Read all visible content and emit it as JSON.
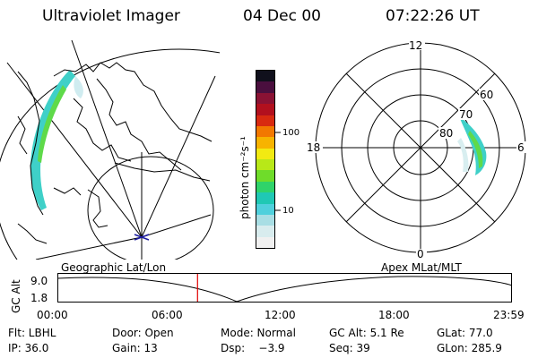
{
  "header": {
    "instrument": "Ultraviolet Imager",
    "date": "04 Dec 00",
    "time": "07:22:26 UT"
  },
  "colorbar": {
    "unit_label": "photon cm⁻²s⁻¹",
    "ticks": [
      "100",
      "10"
    ],
    "colors": [
      "#f0f0f0",
      "#d8ecee",
      "#a8dee4",
      "#4fd0dc",
      "#1fc8b4",
      "#2fd36a",
      "#6fdc2a",
      "#b8e818",
      "#f2ea12",
      "#f7b300",
      "#f27800",
      "#d82a10",
      "#b2101e",
      "#8a1234",
      "#4a0f3e",
      "#10101c"
    ]
  },
  "polar_plot": {
    "hour_labels": [
      "12",
      "18",
      "6",
      "0"
    ],
    "lat_labels": [
      "60",
      "70",
      "80"
    ]
  },
  "map_labels": {
    "left": "Geographic Lat/Lon",
    "right": "Apex  MLat/MLT"
  },
  "timeline": {
    "y_axis_title": "GC Alt",
    "y_ticks": [
      "9.0",
      "1.8"
    ],
    "x_ticks": [
      "00:00",
      "06:00",
      "12:00",
      "18:00",
      "23:59"
    ],
    "current_time_marker": "07:22:26",
    "marker_color": "#e00000"
  },
  "info": {
    "row1": {
      "flt": "Flt: LBHL",
      "door": "Door: Open",
      "mode": "Mode: Normal",
      "gcalt": "GC Alt: 5.1 Re",
      "glat": "GLat: 77.0"
    },
    "row2": {
      "ip": "IP: 36.0",
      "gain": "Gain: 13",
      "dsp": "Dsp:    −3.9",
      "seq": "Seq: 39",
      "glon": "GLon: 285.9"
    }
  }
}
